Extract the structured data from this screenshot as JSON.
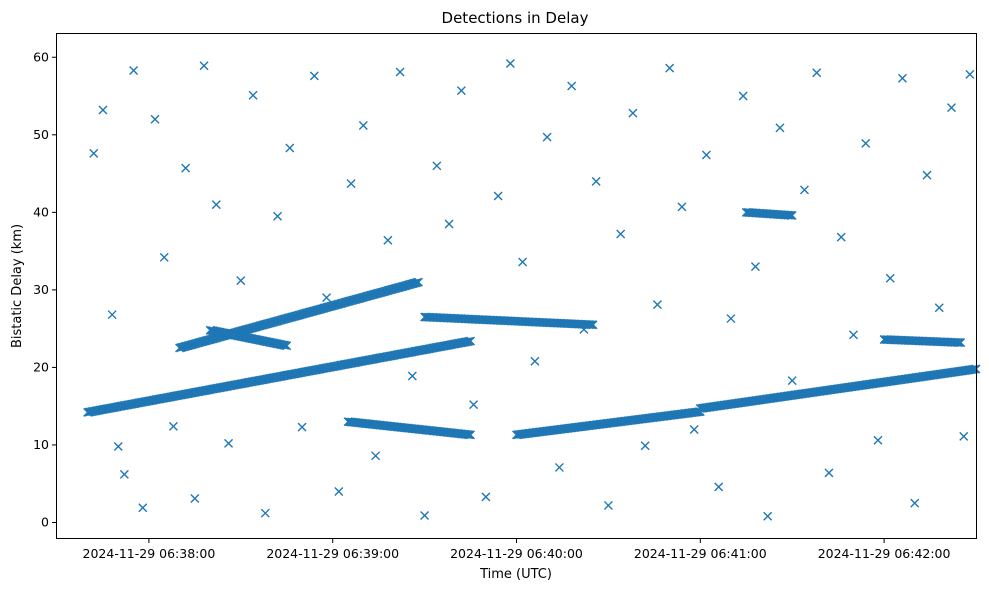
{
  "chart_data": {
    "type": "scatter",
    "title": "Detections in Delay",
    "xlabel": "Time (UTC)",
    "ylabel": "Bistatic Delay (km)",
    "marker": "x",
    "color": "#1f77b4",
    "grid": false,
    "x_axis_kind": "datetime",
    "xlim": [
      "2024-11-29 06:37:30",
      "2024-11-29 06:42:30"
    ],
    "ylim": [
      -2,
      63
    ],
    "x_ticks": [
      "2024-11-29 06:38:00",
      "2024-11-29 06:39:00",
      "2024-11-29 06:40:00",
      "2024-11-29 06:41:00",
      "2024-11-29 06:42:00"
    ],
    "y_ticks": [
      0,
      10,
      20,
      30,
      40,
      50,
      60
    ],
    "tracks": [
      {
        "x": [
          "2024-11-29 06:37:40",
          "2024-11-29 06:39:45"
        ],
        "y": [
          14.2,
          23.4
        ]
      },
      {
        "x": [
          "2024-11-29 06:38:10",
          "2024-11-29 06:39:28"
        ],
        "y": [
          22.5,
          31.0
        ]
      },
      {
        "x": [
          "2024-11-29 06:38:20",
          "2024-11-29 06:38:45"
        ],
        "y": [
          24.8,
          22.8
        ]
      },
      {
        "x": [
          "2024-11-29 06:39:05",
          "2024-11-29 06:39:45"
        ],
        "y": [
          13.0,
          11.3
        ]
      },
      {
        "x": [
          "2024-11-29 06:39:30",
          "2024-11-29 06:40:25"
        ],
        "y": [
          26.5,
          25.5
        ]
      },
      {
        "x": [
          "2024-11-29 06:40:00",
          "2024-11-29 06:41:00"
        ],
        "y": [
          11.3,
          14.3
        ]
      },
      {
        "x": [
          "2024-11-29 06:41:00",
          "2024-11-29 06:42:30"
        ],
        "y": [
          14.7,
          19.8
        ]
      },
      {
        "x": [
          "2024-11-29 06:41:15",
          "2024-11-29 06:41:30"
        ],
        "y": [
          40.0,
          39.6
        ]
      },
      {
        "x": [
          "2024-11-29 06:42:00",
          "2024-11-29 06:42:25"
        ],
        "y": [
          23.6,
          23.2
        ]
      }
    ],
    "scatter_points": [
      [
        "2024-11-29 06:37:42",
        47.6
      ],
      [
        "2024-11-29 06:37:45",
        53.2
      ],
      [
        "2024-11-29 06:37:48",
        26.8
      ],
      [
        "2024-11-29 06:37:50",
        9.8
      ],
      [
        "2024-11-29 06:37:52",
        6.2
      ],
      [
        "2024-11-29 06:37:55",
        58.3
      ],
      [
        "2024-11-29 06:37:58",
        1.9
      ],
      [
        "2024-11-29 06:38:02",
        52.0
      ],
      [
        "2024-11-29 06:38:05",
        34.2
      ],
      [
        "2024-11-29 06:38:08",
        12.4
      ],
      [
        "2024-11-29 06:38:12",
        45.7
      ],
      [
        "2024-11-29 06:38:15",
        3.1
      ],
      [
        "2024-11-29 06:38:18",
        58.9
      ],
      [
        "2024-11-29 06:38:22",
        41.0
      ],
      [
        "2024-11-29 06:38:26",
        10.2
      ],
      [
        "2024-11-29 06:38:30",
        31.2
      ],
      [
        "2024-11-29 06:38:34",
        55.1
      ],
      [
        "2024-11-29 06:38:38",
        1.2
      ],
      [
        "2024-11-29 06:38:42",
        39.5
      ],
      [
        "2024-11-29 06:38:46",
        48.3
      ],
      [
        "2024-11-29 06:38:50",
        12.3
      ],
      [
        "2024-11-29 06:38:54",
        57.6
      ],
      [
        "2024-11-29 06:38:58",
        29.0
      ],
      [
        "2024-11-29 06:39:02",
        4.0
      ],
      [
        "2024-11-29 06:39:06",
        43.7
      ],
      [
        "2024-11-29 06:39:10",
        51.2
      ],
      [
        "2024-11-29 06:39:14",
        8.6
      ],
      [
        "2024-11-29 06:39:18",
        36.4
      ],
      [
        "2024-11-29 06:39:22",
        58.1
      ],
      [
        "2024-11-29 06:39:26",
        18.9
      ],
      [
        "2024-11-29 06:39:30",
        0.9
      ],
      [
        "2024-11-29 06:39:34",
        46.0
      ],
      [
        "2024-11-29 06:39:38",
        38.5
      ],
      [
        "2024-11-29 06:39:42",
        55.7
      ],
      [
        "2024-11-29 06:39:46",
        15.2
      ],
      [
        "2024-11-29 06:39:50",
        3.3
      ],
      [
        "2024-11-29 06:39:54",
        42.1
      ],
      [
        "2024-11-29 06:39:58",
        59.2
      ],
      [
        "2024-11-29 06:40:02",
        33.6
      ],
      [
        "2024-11-29 06:40:06",
        20.8
      ],
      [
        "2024-11-29 06:40:10",
        49.7
      ],
      [
        "2024-11-29 06:40:14",
        7.1
      ],
      [
        "2024-11-29 06:40:18",
        56.3
      ],
      [
        "2024-11-29 06:40:22",
        24.9
      ],
      [
        "2024-11-29 06:40:26",
        44.0
      ],
      [
        "2024-11-29 06:40:30",
        2.2
      ],
      [
        "2024-11-29 06:40:34",
        37.2
      ],
      [
        "2024-11-29 06:40:38",
        52.8
      ],
      [
        "2024-11-29 06:40:42",
        9.9
      ],
      [
        "2024-11-29 06:40:46",
        28.1
      ],
      [
        "2024-11-29 06:40:50",
        58.6
      ],
      [
        "2024-11-29 06:40:54",
        40.7
      ],
      [
        "2024-11-29 06:40:58",
        12.0
      ],
      [
        "2024-11-29 06:41:02",
        47.4
      ],
      [
        "2024-11-29 06:41:06",
        4.6
      ],
      [
        "2024-11-29 06:41:10",
        26.3
      ],
      [
        "2024-11-29 06:41:14",
        55.0
      ],
      [
        "2024-11-29 06:41:18",
        33.0
      ],
      [
        "2024-11-29 06:41:22",
        0.8
      ],
      [
        "2024-11-29 06:41:26",
        50.9
      ],
      [
        "2024-11-29 06:41:30",
        18.3
      ],
      [
        "2024-11-29 06:41:34",
        42.9
      ],
      [
        "2024-11-29 06:41:38",
        58.0
      ],
      [
        "2024-11-29 06:41:42",
        6.4
      ],
      [
        "2024-11-29 06:41:46",
        36.8
      ],
      [
        "2024-11-29 06:41:50",
        24.2
      ],
      [
        "2024-11-29 06:41:54",
        48.9
      ],
      [
        "2024-11-29 06:41:58",
        10.6
      ],
      [
        "2024-11-29 06:42:02",
        31.5
      ],
      [
        "2024-11-29 06:42:06",
        57.3
      ],
      [
        "2024-11-29 06:42:10",
        2.5
      ],
      [
        "2024-11-29 06:42:14",
        44.8
      ],
      [
        "2024-11-29 06:42:18",
        27.7
      ],
      [
        "2024-11-29 06:42:22",
        53.5
      ],
      [
        "2024-11-29 06:42:26",
        11.1
      ],
      [
        "2024-11-29 06:42:28",
        57.8
      ]
    ]
  }
}
